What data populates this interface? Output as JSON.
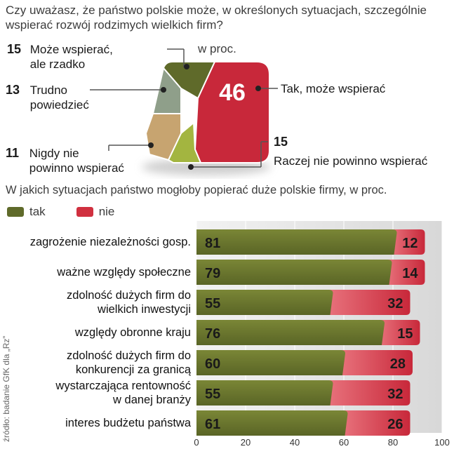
{
  "question": "Czy uważasz, że państwo polskie może, w określonych sytuacjach, szczególnie wspierać rozwój rodzimych wielkich firm?",
  "pie_unit": "w proc.",
  "chart_data": [
    {
      "type": "pie",
      "slices": [
        {
          "label_lines": [
            "Tak, może wspierać"
          ],
          "value": 46,
          "color": "#c8283a"
        },
        {
          "label_lines": [
            "Raczej nie powinno wspierać"
          ],
          "value": 15,
          "color": "#a3b540"
        },
        {
          "label_lines": [
            "Nigdy nie",
            "powinno wspierać"
          ],
          "value": 11,
          "color": "#c7a470"
        },
        {
          "label_lines": [
            "Trudno",
            "powiedzieć"
          ],
          "value": 13,
          "color": "#8f9f8a"
        },
        {
          "label_lines": [
            "Może wspierać,",
            "ale rzadko"
          ],
          "value": 15,
          "color": "#5f6a2a"
        }
      ]
    },
    {
      "type": "bar",
      "title": "W jakich sytuacjach państwo mogłoby popierać duże polskie firmy, w proc.",
      "legend": [
        {
          "name": "tak",
          "color": "#5f6a2a"
        },
        {
          "name": "nie",
          "color": "#d0303f"
        }
      ],
      "categories": [
        [
          "zagrożenie niezależności gosp."
        ],
        [
          "ważne względy społeczne"
        ],
        [
          "zdolność dużych firm do",
          "wielkich inwestycji"
        ],
        [
          "względy obronne kraju"
        ],
        [
          "zdolność dużych firm do",
          "konkurencji za granicą"
        ],
        [
          "wystarczająca rentowność",
          "w danej branży"
        ],
        [
          "interes budżetu państwa"
        ]
      ],
      "series": [
        {
          "name": "tak",
          "values": [
            81,
            79,
            55,
            76,
            60,
            55,
            61
          ]
        },
        {
          "name": "nie",
          "values": [
            12,
            14,
            32,
            15,
            28,
            32,
            26
          ]
        }
      ],
      "xlim": [
        0,
        100
      ],
      "xticks": [
        "0",
        "20",
        "40",
        "60",
        "80",
        "100"
      ]
    }
  ],
  "source": "źródło: badanie GfK dla „Rz”"
}
